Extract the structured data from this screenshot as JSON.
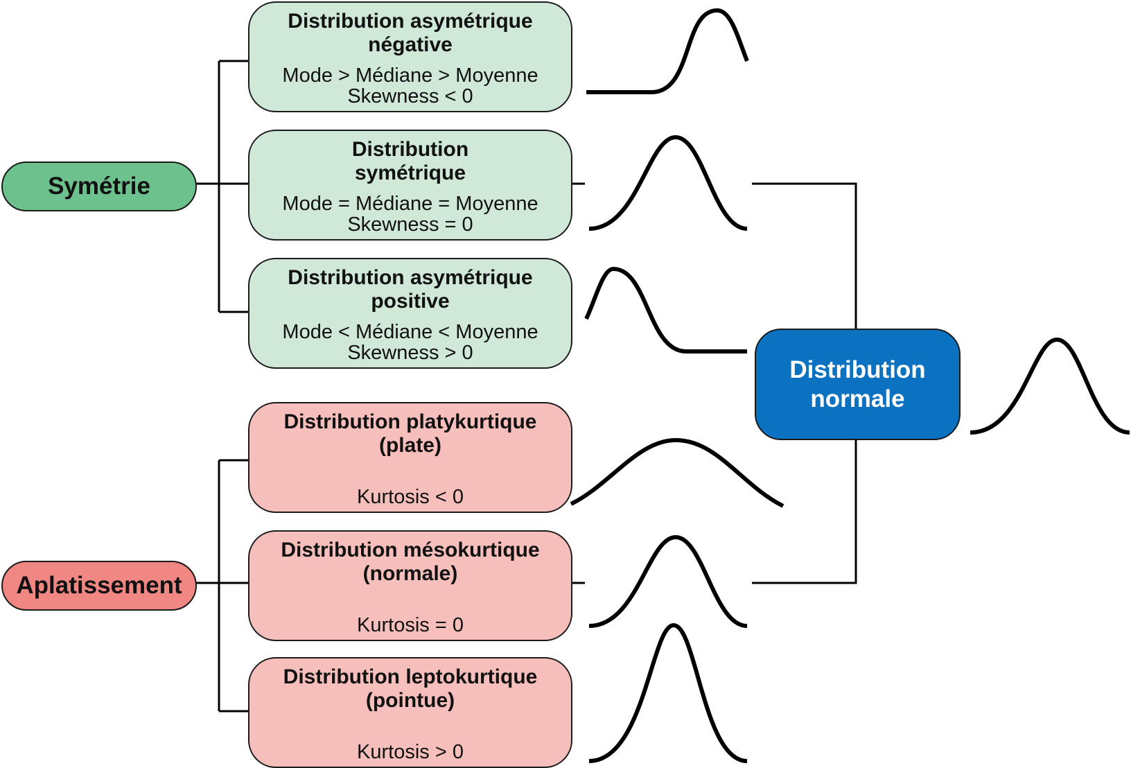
{
  "roots": {
    "symmetry": {
      "label": "Symétrie",
      "color": "#6cc18c"
    },
    "kurtosis": {
      "label": "Aplatissement",
      "color": "#f08783"
    }
  },
  "symmetry_boxes": [
    {
      "title": "Distribution asymétrique\nnégative",
      "desc": "Mode > Médiane > Moyenne\nSkewness < 0",
      "curve_icon": "left-skewed-curve-icon"
    },
    {
      "title": "Distribution\nsymétrique",
      "desc": "Mode = Médiane = Moyenne\nSkewness = 0",
      "curve_icon": "symmetric-curve-icon"
    },
    {
      "title": "Distribution asymétrique\npositive",
      "desc": "Mode < Médiane < Moyenne\nSkewness > 0",
      "curve_icon": "right-skewed-curve-icon"
    }
  ],
  "kurtosis_boxes": [
    {
      "title": "Distribution platykurtique\n(plate)",
      "desc": "Kurtosis < 0",
      "curve_icon": "flat-curve-icon"
    },
    {
      "title": "Distribution mésokurtique\n(normale)",
      "desc": "Kurtosis = 0",
      "curve_icon": "normal-curve-icon"
    },
    {
      "title": "Distribution leptokurtique\n(pointue)",
      "desc": "Kurtosis > 0",
      "curve_icon": "peaked-curve-icon"
    }
  ],
  "normal": {
    "label": "Distribution\nnormale",
    "color": "#0a72c1",
    "curve_icon": "normal-curve-icon"
  },
  "colors": {
    "green_box": "#cfe8d7",
    "red_box": "#f7bfbb",
    "line": "#000000"
  }
}
